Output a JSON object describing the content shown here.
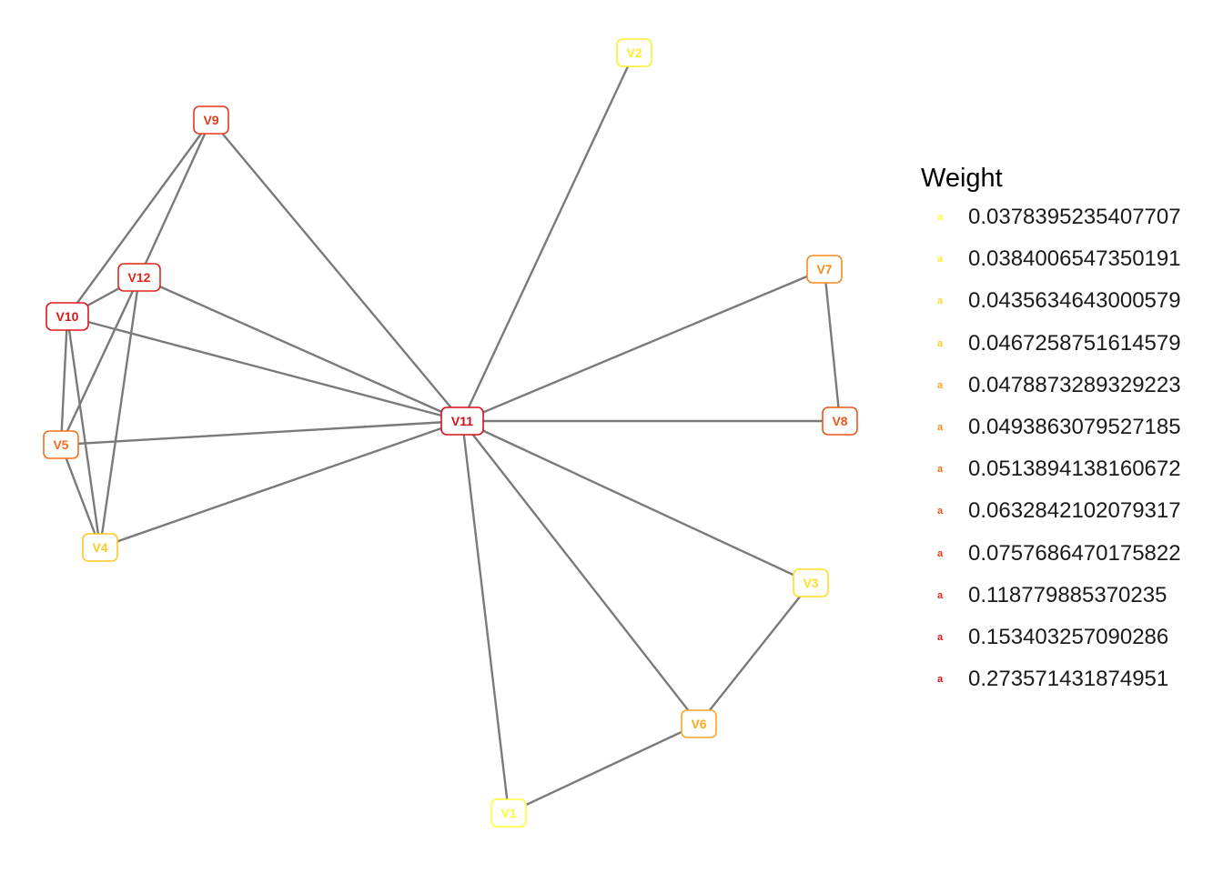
{
  "legend": {
    "title": "Weight",
    "key_glyph": "a",
    "items": [
      {
        "label": "0.0378395235407707",
        "color": "#FFFF33"
      },
      {
        "label": "0.0384006547350191",
        "color": "#FFEE2E"
      },
      {
        "label": "0.0435634643000579",
        "color": "#FFDD29"
      },
      {
        "label": "0.0467258751614579",
        "color": "#FFC824"
      },
      {
        "label": "0.0478873289329223",
        "color": "#FFA51F"
      },
      {
        "label": "0.0493863079527185",
        "color": "#FB8A1D"
      },
      {
        "label": "0.0513894138160672",
        "color": "#F3701C"
      },
      {
        "label": "0.0632842102079317",
        "color": "#EC551B"
      },
      {
        "label": "0.0757686470175822",
        "color": "#E53B1A"
      },
      {
        "label": "0.118779885370235",
        "color": "#E02719"
      },
      {
        "label": "0.153403257090286",
        "color": "#DC1818"
      },
      {
        "label": "0.273571431874951",
        "color": "#D71018"
      }
    ]
  },
  "graph": {
    "edge_color": "#7a7a7a",
    "nodes": [
      {
        "id": "V1",
        "label": "V1",
        "color": "#FFFF33"
      },
      {
        "id": "V2",
        "label": "V2",
        "color": "#FFEE2E"
      },
      {
        "id": "V3",
        "label": "V3",
        "color": "#FFDD29"
      },
      {
        "id": "V4",
        "label": "V4",
        "color": "#FFC824"
      },
      {
        "id": "V5",
        "label": "V5",
        "color": "#F3701C"
      },
      {
        "id": "V6",
        "label": "V6",
        "color": "#FFA51F"
      },
      {
        "id": "V7",
        "label": "V7",
        "color": "#FB8A1D"
      },
      {
        "id": "V8",
        "label": "V8",
        "color": "#EC551B"
      },
      {
        "id": "V9",
        "label": "V9",
        "color": "#E53B1A"
      },
      {
        "id": "V10",
        "label": "V10",
        "color": "#DC1818"
      },
      {
        "id": "V11",
        "label": "V11",
        "color": "#D71018"
      },
      {
        "id": "V12",
        "label": "V12",
        "color": "#E02719"
      }
    ],
    "edges": [
      [
        "V11",
        "V2"
      ],
      [
        "V11",
        "V7"
      ],
      [
        "V11",
        "V8"
      ],
      [
        "V11",
        "V3"
      ],
      [
        "V11",
        "V6"
      ],
      [
        "V11",
        "V1"
      ],
      [
        "V11",
        "V9"
      ],
      [
        "V11",
        "V12"
      ],
      [
        "V11",
        "V10"
      ],
      [
        "V11",
        "V5"
      ],
      [
        "V11",
        "V4"
      ],
      [
        "V7",
        "V8"
      ],
      [
        "V3",
        "V6"
      ],
      [
        "V6",
        "V1"
      ],
      [
        "V9",
        "V10"
      ],
      [
        "V9",
        "V12"
      ],
      [
        "V12",
        "V10"
      ],
      [
        "V12",
        "V5"
      ],
      [
        "V12",
        "V4"
      ],
      [
        "V10",
        "V5"
      ],
      [
        "V10",
        "V4"
      ],
      [
        "V5",
        "V4"
      ]
    ]
  }
}
